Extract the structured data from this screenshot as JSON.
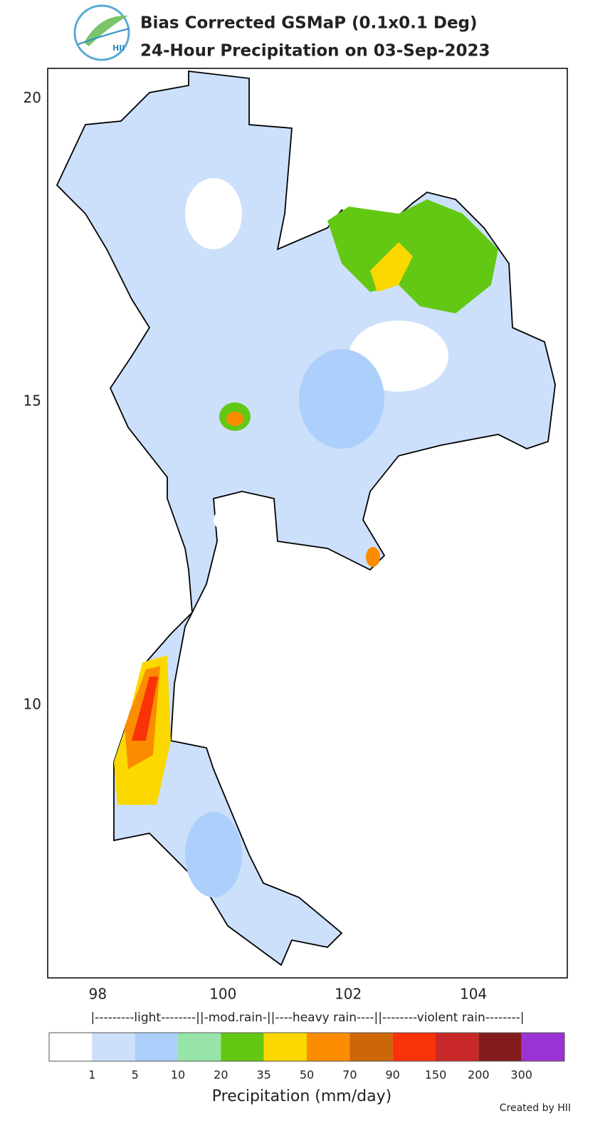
{
  "header": {
    "title": "Bias Corrected GSMaP (0.1x0.1 Deg)",
    "subtitle": "24-Hour Precipitation on 03-Sep-2023",
    "logo_text": "HII"
  },
  "map": {
    "xlim": [
      97.2,
      105.5
    ],
    "ylim": [
      5.5,
      20.5
    ],
    "xticks": [
      98,
      100,
      102,
      104
    ],
    "yticks": [
      20,
      15,
      10
    ]
  },
  "legend": {
    "classes": "|---------light--------||-mod.rain-||----heavy rain----||--------violent rain--------|",
    "colors": [
      "#ffffff",
      "#cce0fb",
      "#acd0fb",
      "#96e4a7",
      "#63c814",
      "#fbd800",
      "#fb8c00",
      "#cd6607",
      "#fa3208",
      "#c82828",
      "#821c1c",
      "#9b33d4"
    ],
    "bounds": [
      1,
      5,
      10,
      20,
      35,
      50,
      70,
      90,
      150,
      200,
      300
    ],
    "label": "Precipitation (mm/day)"
  },
  "credit": "Created by HII"
}
